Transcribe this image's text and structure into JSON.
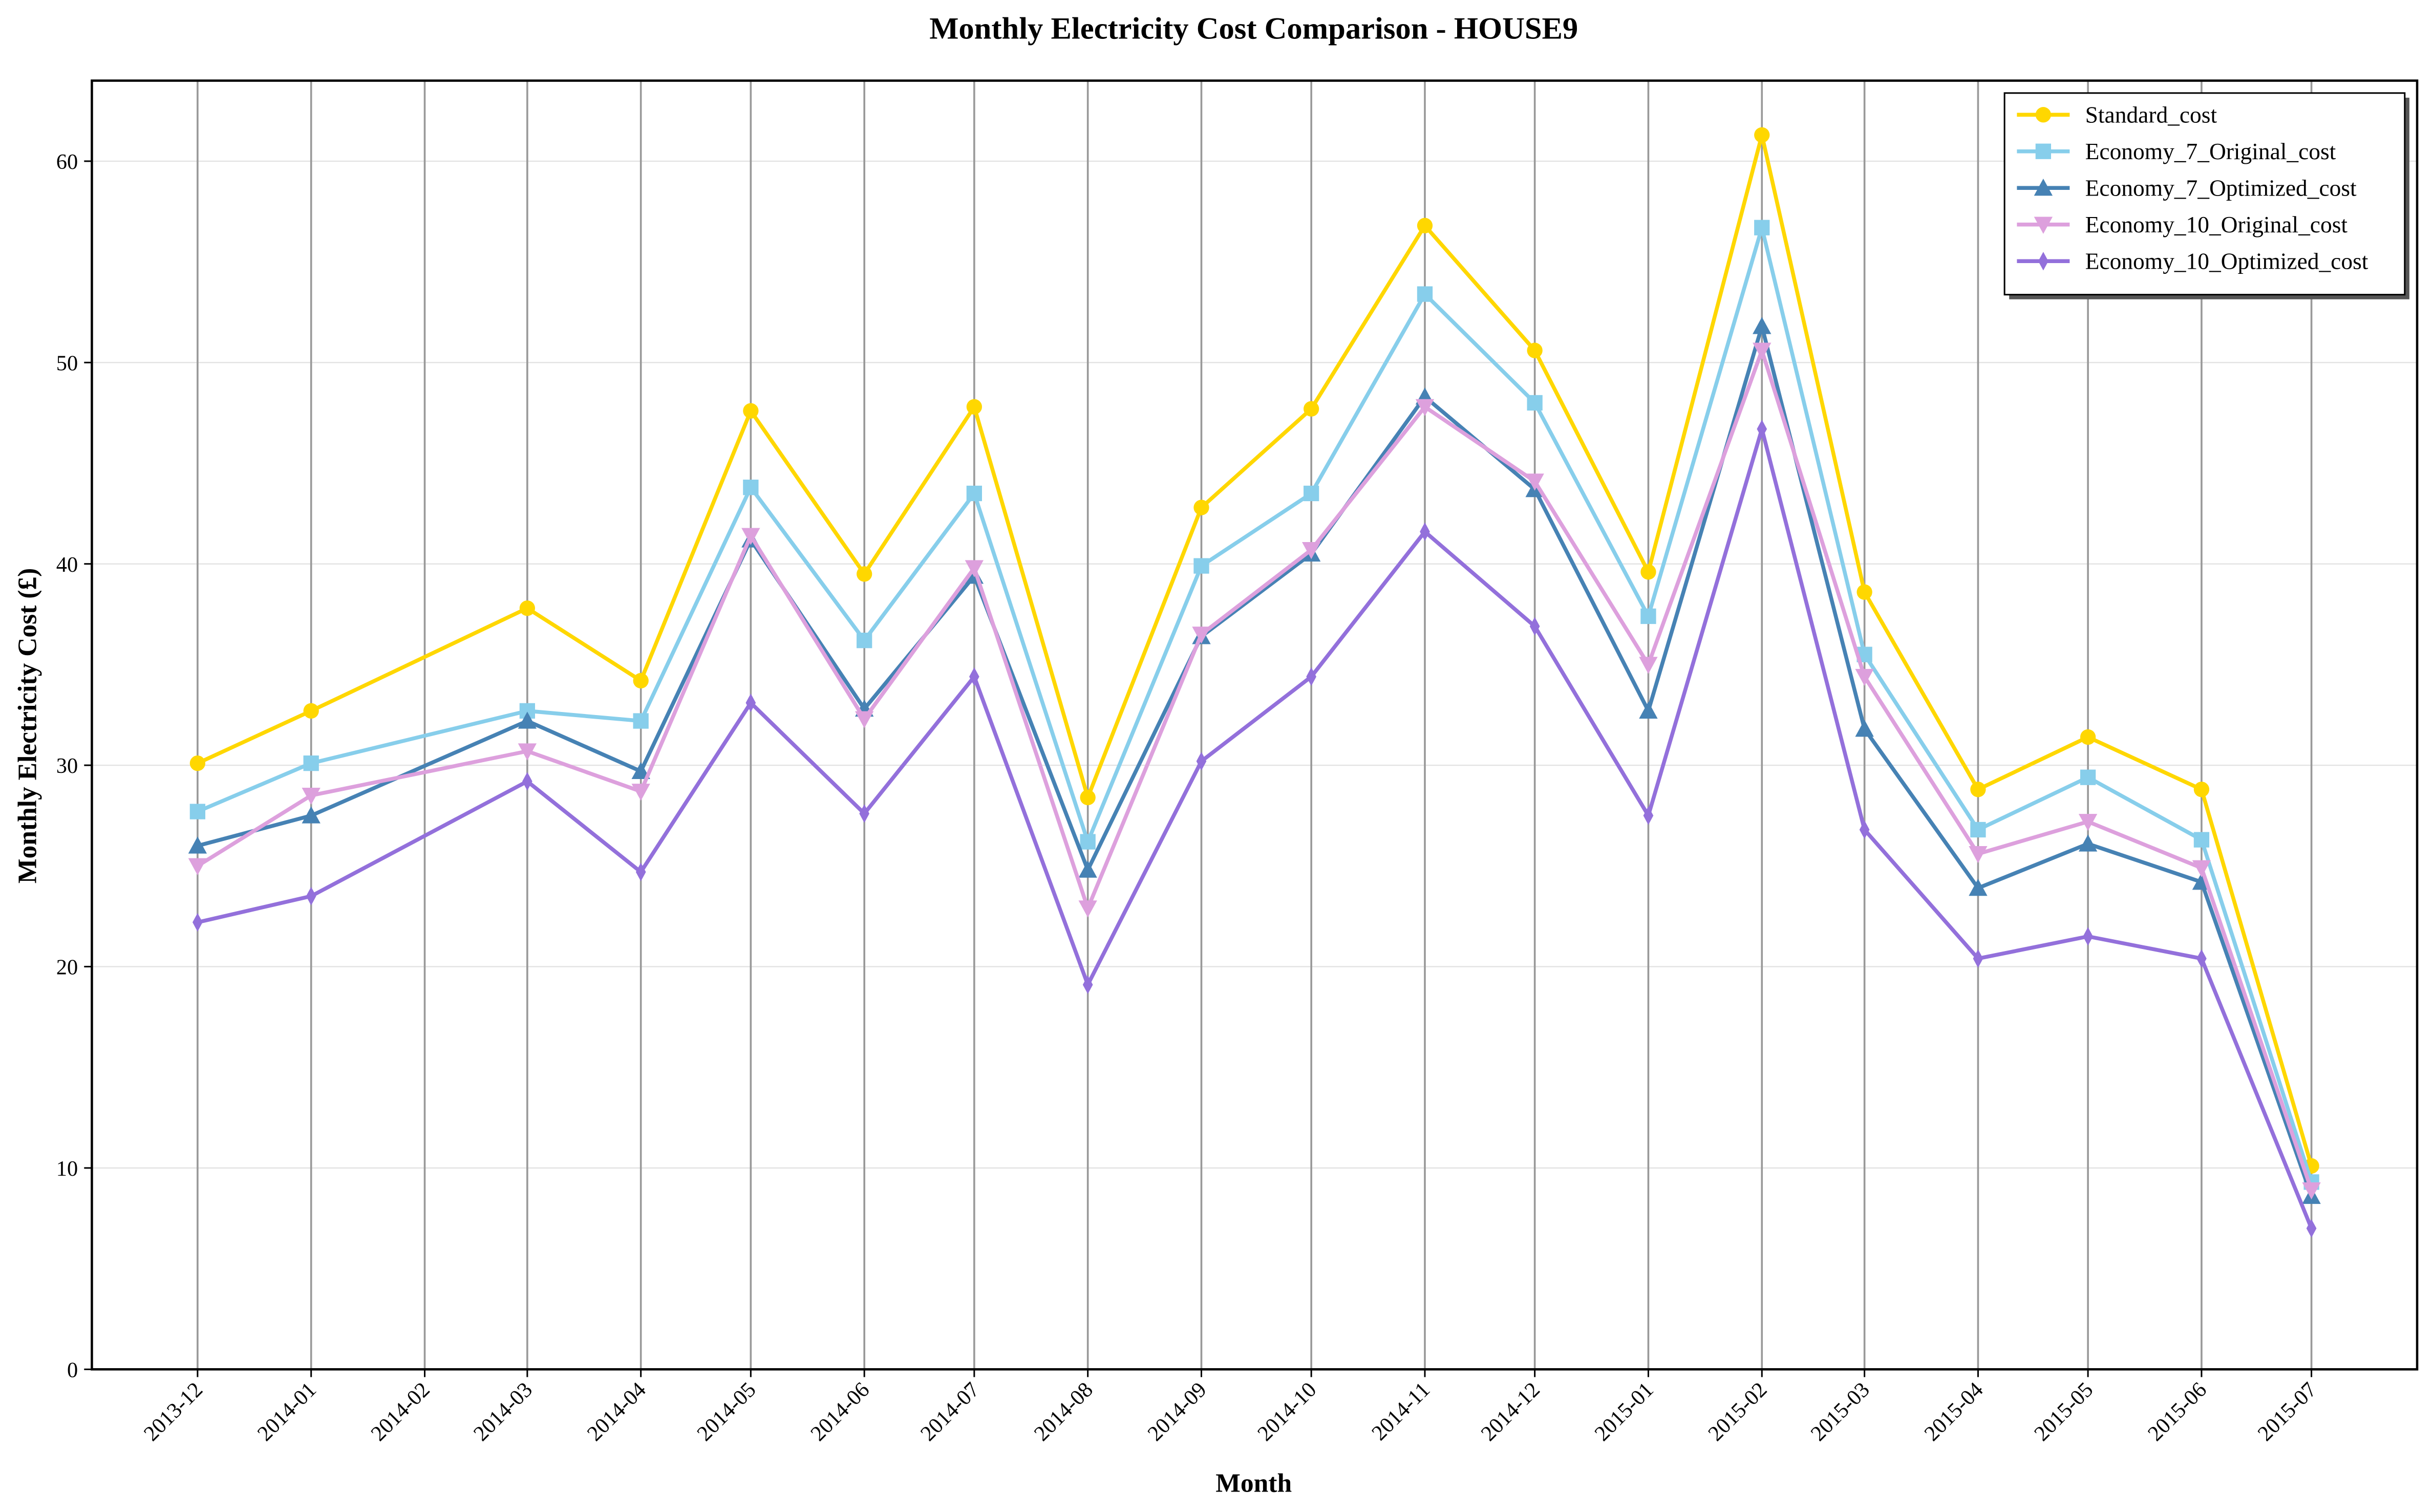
{
  "chart_data": {
    "type": "line",
    "title": "Monthly Electricity Cost Comparison - HOUSE9",
    "xlabel": "Month",
    "ylabel": "Monthly Electricity Cost (£)",
    "x": [
      "2013-12",
      "2014-01",
      "2014-03",
      "2014-04",
      "2014-05",
      "2014-06",
      "2014-07",
      "2014-08",
      "2014-09",
      "2014-10",
      "2014-11",
      "2014-12",
      "2015-01",
      "2015-02",
      "2015-03",
      "2015-04",
      "2015-05",
      "2015-06",
      "2015-07"
    ],
    "xticks": [
      "2013-12",
      "2014-01",
      "2014-02",
      "2014-03",
      "2014-04",
      "2014-05",
      "2014-06",
      "2014-07",
      "2014-08",
      "2014-09",
      "2014-10",
      "2014-11",
      "2014-12",
      "2015-01",
      "2015-02",
      "2015-03",
      "2015-04",
      "2015-05",
      "2015-06",
      "2015-07"
    ],
    "ylim": [
      0,
      64
    ],
    "yticks": [
      0,
      10,
      20,
      30,
      40,
      50,
      60
    ],
    "grid": true,
    "legend": "upper right",
    "series": [
      {
        "name": "Standard_cost",
        "color": "#FFD700",
        "marker": "circle",
        "values": [
          30.1,
          32.7,
          37.8,
          34.2,
          47.6,
          39.5,
          47.8,
          28.4,
          42.8,
          47.7,
          56.8,
          50.6,
          39.6,
          61.3,
          38.6,
          28.8,
          31.4,
          28.8,
          10.1
        ]
      },
      {
        "name": "Economy_7_Original_cost",
        "color": "#87CEEB",
        "marker": "square",
        "values": [
          27.7,
          30.1,
          32.7,
          32.2,
          43.8,
          36.2,
          43.5,
          26.2,
          39.9,
          43.5,
          53.4,
          48.0,
          37.4,
          56.7,
          35.5,
          26.8,
          29.4,
          26.3,
          9.3
        ]
      },
      {
        "name": "Economy_7_Optimized_cost",
        "color": "#4682B4",
        "marker": "triangle-up",
        "values": [
          26.0,
          27.5,
          32.2,
          29.7,
          41.2,
          32.8,
          39.4,
          24.8,
          36.4,
          40.5,
          48.3,
          43.7,
          32.7,
          51.8,
          31.8,
          23.9,
          26.1,
          24.2,
          8.6
        ]
      },
      {
        "name": "Economy_10_Original_cost",
        "color": "#DDA0DD",
        "marker": "triangle-down",
        "values": [
          25.0,
          28.5,
          30.7,
          28.7,
          41.4,
          32.3,
          39.8,
          22.9,
          36.5,
          40.7,
          47.8,
          44.1,
          35.0,
          50.6,
          34.4,
          25.6,
          27.2,
          24.9,
          8.9
        ]
      },
      {
        "name": "Economy_10_Optimized_cost",
        "color": "#9370DB",
        "marker": "diamond",
        "values": [
          22.2,
          23.5,
          29.2,
          24.7,
          33.1,
          27.6,
          34.4,
          19.1,
          30.2,
          34.4,
          41.6,
          36.9,
          27.5,
          46.7,
          26.8,
          20.4,
          21.5,
          20.4,
          7.0
        ]
      }
    ]
  }
}
